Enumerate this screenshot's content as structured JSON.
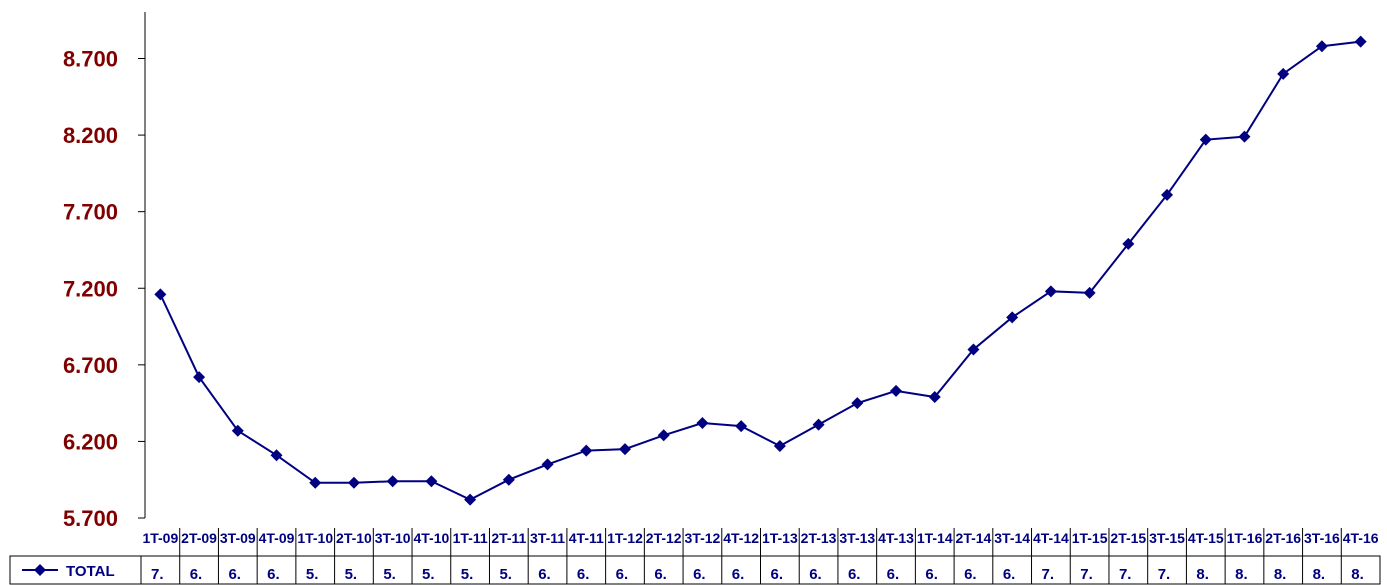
{
  "chart_data": {
    "type": "line",
    "title": "",
    "xlabel": "",
    "ylabel": "",
    "ylim": [
      5700,
      9200
    ],
    "y_ticks": [
      {
        "value": 5700,
        "label": "5.700"
      },
      {
        "value": 6200,
        "label": "6.200"
      },
      {
        "value": 6700,
        "label": "6.700"
      },
      {
        "value": 7200,
        "label": "7.200"
      },
      {
        "value": 7700,
        "label": "7.700"
      },
      {
        "value": 8200,
        "label": "8.200"
      },
      {
        "value": 8700,
        "label": "8.700"
      }
    ],
    "categories": [
      "1T-09",
      "2T-09",
      "3T-09",
      "4T-09",
      "1T-10",
      "2T-10",
      "3T-10",
      "4T-10",
      "1T-11",
      "2T-11",
      "3T-11",
      "4T-11",
      "1T-12",
      "2T-12",
      "3T-12",
      "4T-12",
      "1T-13",
      "2T-13",
      "3T-13",
      "4T-13",
      "1T-14",
      "2T-14",
      "3T-14",
      "4T-14",
      "1T-15",
      "2T-15",
      "3T-15",
      "4T-15",
      "1T-16",
      "2T-16",
      "3T-16",
      "4T-16"
    ],
    "category_labels_visible": [
      "1T-09",
      "2T-09",
      "3T-09",
      "4T-09",
      "1T-10",
      "2T-10",
      "3T-10",
      "4T-10",
      "1T-11",
      "2T-11",
      "3T-11",
      "4T-11",
      "1T-12",
      "2T-12",
      "3T-12",
      "4T-12",
      "1T-13",
      "2T-13",
      "3T-13",
      "4T-13",
      "1T-14",
      "2T-14",
      "3T-14",
      "4T-14",
      "1T-15",
      "2T-15",
      "3T-15",
      "4T-15",
      "1T-16",
      "2T-16",
      "3T-16",
      "4T-16"
    ],
    "series": [
      {
        "name": "TOTAL",
        "color": "#000080",
        "values": [
          7160,
          6620,
          6270,
          6110,
          5930,
          5930,
          5940,
          5940,
          5820,
          5950,
          6050,
          6140,
          6150,
          6240,
          6320,
          6300,
          6170,
          6310,
          6450,
          6530,
          6490,
          6800,
          7010,
          7180,
          7170,
          7490,
          7810,
          8170,
          8190,
          8600,
          8780,
          8810
        ],
        "table_labels": [
          "7.",
          "6.",
          "6.",
          "6.",
          "5.",
          "5.",
          "5.",
          "5.",
          "5.",
          "5.",
          "6.",
          "6.",
          "6.",
          "6.",
          "6.",
          "6.",
          "6.",
          "6.",
          "6.",
          "6.",
          "6.",
          "6.",
          "6.",
          "7.",
          "7.",
          "7.",
          "7.",
          "8.",
          "8.",
          "8.",
          "8.",
          "8."
        ]
      }
    ],
    "grid": false,
    "legend": "data-table-left",
    "colors": {
      "tick_label": "#800000",
      "series": "#000080",
      "axis": "#000000",
      "category_label": "#000080"
    }
  }
}
